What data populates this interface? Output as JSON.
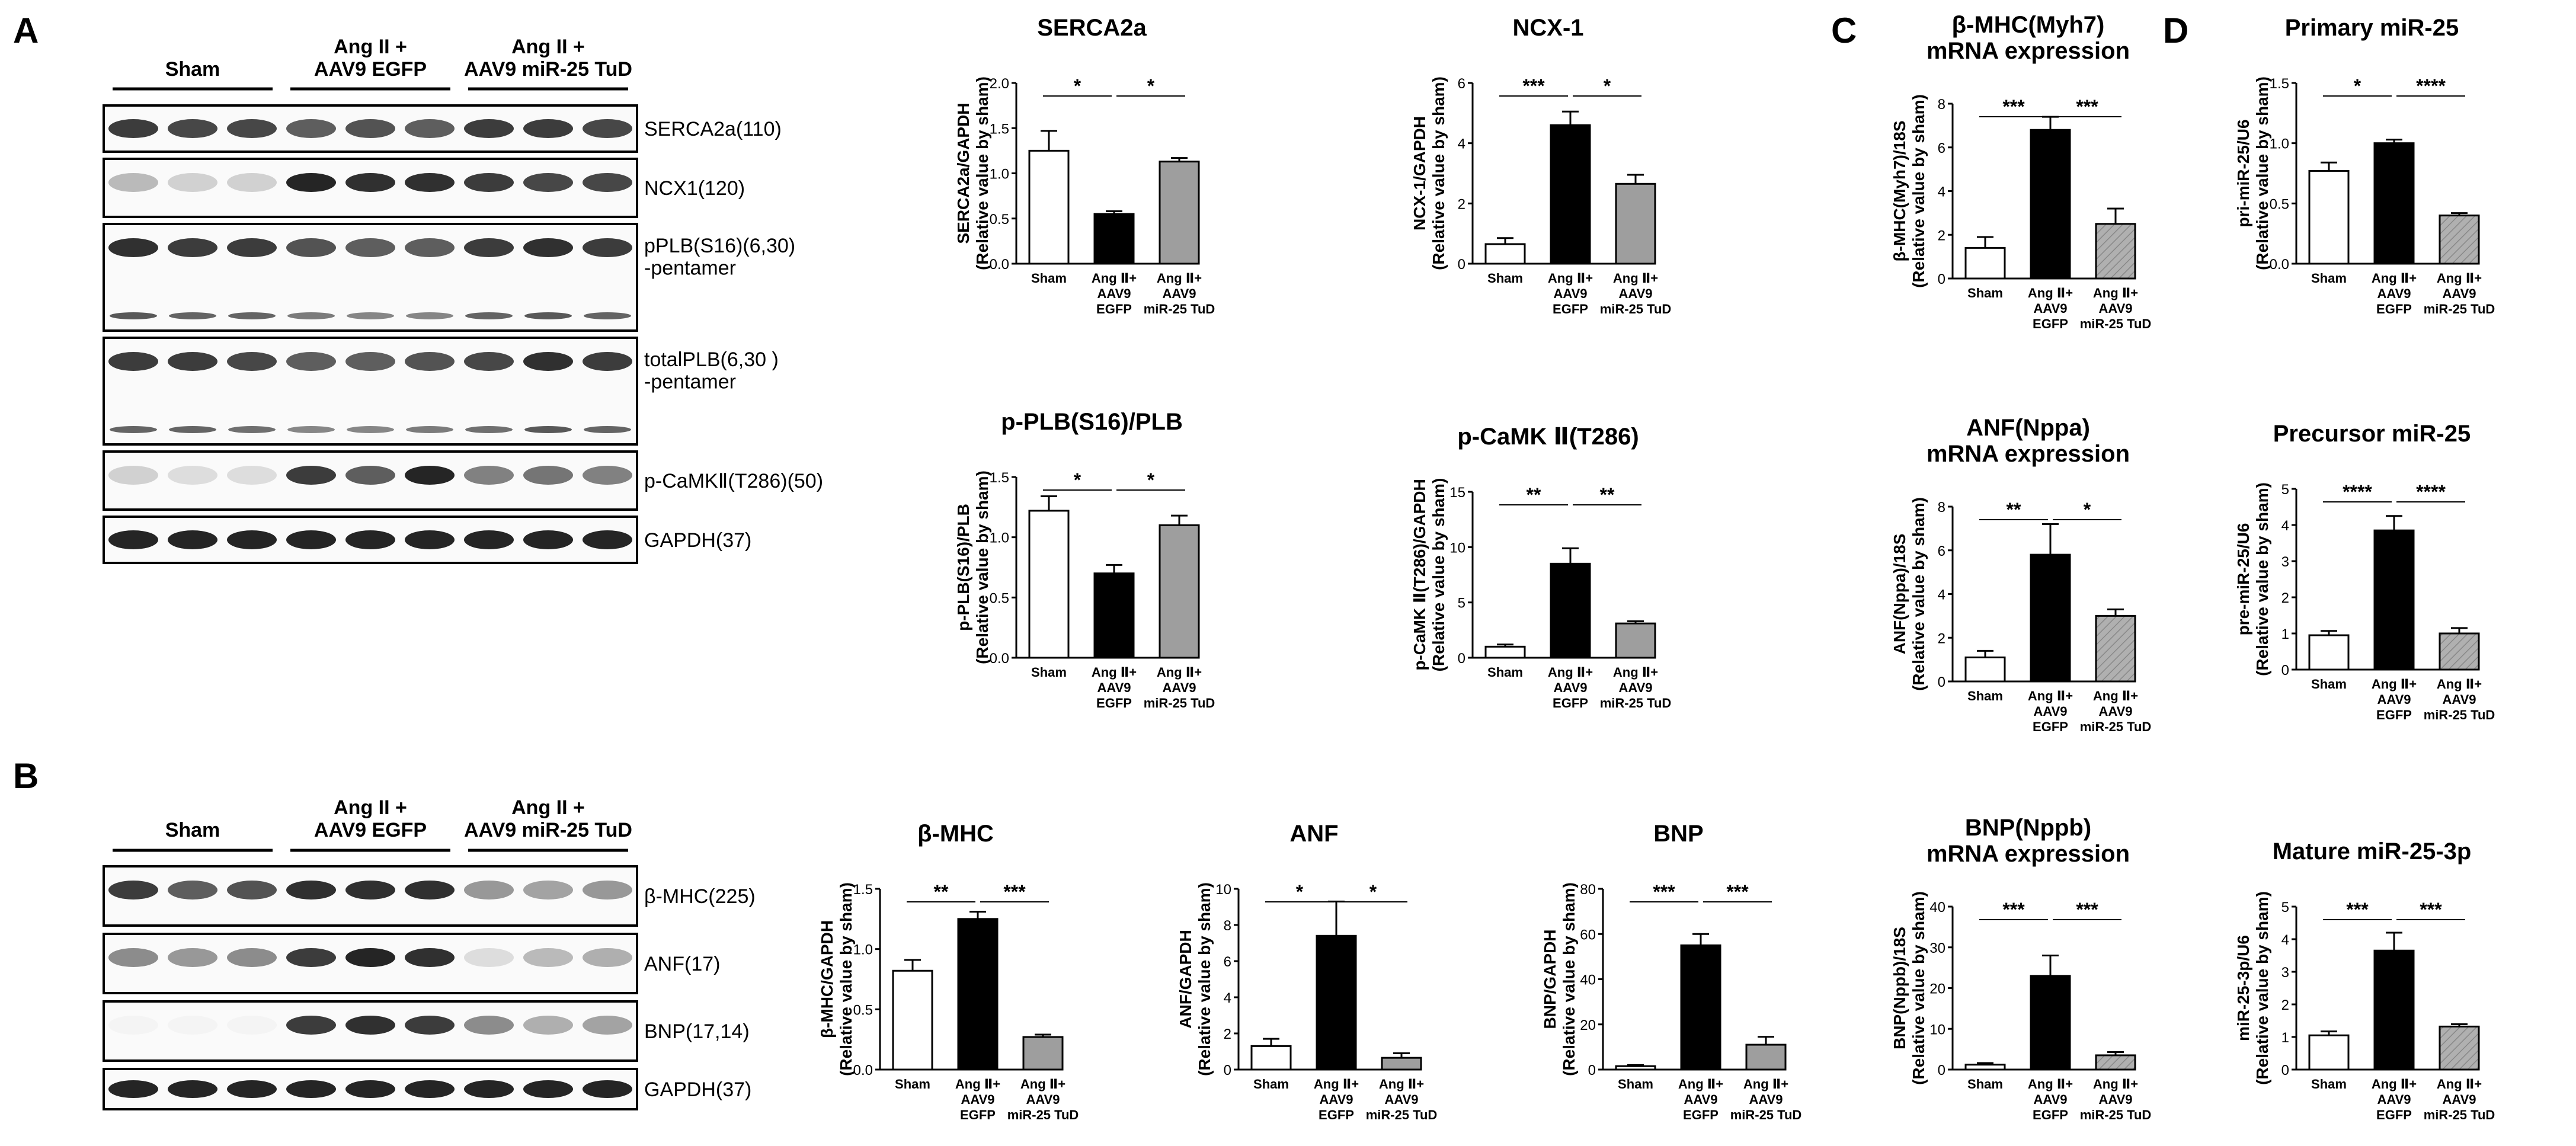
{
  "panels": {
    "A": "A",
    "B": "B",
    "C": "C",
    "D": "D"
  },
  "colors": {
    "sham": "#ffffff",
    "egfp": "#000000",
    "tud": "#9e9e9e",
    "tud_hatched": "#b0b0b0",
    "axis": "#000000"
  },
  "blot_A": {
    "group_labels": [
      "Sham",
      "Ang II +\nAAV9 EGFP",
      "Ang II +\nAAV9 miR-25 TuD"
    ],
    "bands": [
      {
        "label": "SERCA2a(110)",
        "intensity": [
          0.85,
          0.8,
          0.8,
          0.7,
          0.75,
          0.7,
          0.85,
          0.85,
          0.8
        ]
      },
      {
        "label": "NCX1(120)",
        "intensity": [
          0.3,
          0.2,
          0.2,
          0.95,
          0.9,
          0.9,
          0.85,
          0.8,
          0.8
        ]
      },
      {
        "label": "pPLB(S16)(6,30)\n-pentamer",
        "intensity": [
          0.9,
          0.85,
          0.85,
          0.75,
          0.7,
          0.7,
          0.85,
          0.9,
          0.85
        ]
      },
      {
        "label": "totalPLB(6,30 )\n-pentamer",
        "intensity": [
          0.85,
          0.85,
          0.8,
          0.7,
          0.7,
          0.75,
          0.8,
          0.9,
          0.85
        ]
      },
      {
        "label": "p-CaMKⅡ(T286)(50)",
        "intensity": [
          0.2,
          0.15,
          0.15,
          0.85,
          0.7,
          0.95,
          0.55,
          0.6,
          0.55
        ]
      },
      {
        "label": "GAPDH(37)",
        "intensity": [
          0.95,
          0.95,
          0.95,
          0.95,
          0.95,
          0.95,
          0.95,
          0.95,
          0.95
        ]
      }
    ]
  },
  "blot_B": {
    "group_labels": [
      "Sham",
      "Ang II +\nAAV9 EGFP",
      "Ang II +\nAAV9 miR-25 TuD"
    ],
    "bands": [
      {
        "label": "β-MHC(225)",
        "intensity": [
          0.85,
          0.7,
          0.75,
          0.9,
          0.9,
          0.9,
          0.45,
          0.4,
          0.45
        ]
      },
      {
        "label": "ANF(17)",
        "intensity": [
          0.5,
          0.45,
          0.5,
          0.85,
          0.95,
          0.9,
          0.15,
          0.3,
          0.35
        ]
      },
      {
        "label": "BNP(17,14)",
        "intensity": [
          0.05,
          0.05,
          0.05,
          0.85,
          0.9,
          0.85,
          0.5,
          0.35,
          0.4
        ]
      },
      {
        "label": "GAPDH(37)",
        "intensity": [
          0.95,
          0.95,
          0.95,
          0.95,
          0.95,
          0.95,
          0.95,
          0.95,
          0.95
        ]
      }
    ]
  },
  "chart_data": [
    {
      "type": "bar",
      "title": "SERCA2a",
      "ylabel": "SERCA2a/GAPDH\n(Relative value by sham)",
      "categories": [
        "Sham",
        "Ang Ⅱ+\nAAV9\nEGFP",
        "Ang Ⅱ+\nAAV9\nmiR-25 TuD"
      ],
      "values": [
        1.25,
        0.55,
        1.13
      ],
      "errors": [
        0.22,
        0.03,
        0.04
      ],
      "ylim": [
        0,
        2.0
      ],
      "ticks": [
        "0.0",
        "0.5",
        "1.0",
        "1.5",
        "2.0"
      ],
      "significance": [
        {
          "from": 0,
          "to": 1,
          "label": "*"
        },
        {
          "from": 1,
          "to": 2,
          "label": "*"
        }
      ],
      "hatched": false
    },
    {
      "type": "bar",
      "title": "NCX-1",
      "ylabel": "NCX-1/GAPDH\n(Relative value by sham)",
      "categories": [
        "Sham",
        "Ang Ⅱ+\nAAV9\nEGFP",
        "Ang Ⅱ+\nAAV9\nmiR-25 TuD"
      ],
      "values": [
        0.65,
        4.6,
        2.65
      ],
      "errors": [
        0.2,
        0.45,
        0.3
      ],
      "ylim": [
        0,
        6
      ],
      "ticks": [
        "0",
        "2",
        "4",
        "6"
      ],
      "significance": [
        {
          "from": 0,
          "to": 1,
          "label": "***"
        },
        {
          "from": 1,
          "to": 2,
          "label": "*"
        }
      ],
      "hatched": false
    },
    {
      "type": "bar",
      "title": "p-PLB(S16)/PLB",
      "ylabel": "p-PLB(S16)/PLB\n(Relative value by sham)",
      "categories": [
        "Sham",
        "Ang Ⅱ+\nAAV9\nEGFP",
        "Ang Ⅱ+\nAAV9\nmiR-25 TuD"
      ],
      "values": [
        1.22,
        0.7,
        1.1
      ],
      "errors": [
        0.12,
        0.07,
        0.08
      ],
      "ylim": [
        0,
        1.5
      ],
      "ticks": [
        "0.0",
        "0.5",
        "1.0",
        "1.5"
      ],
      "significance": [
        {
          "from": 0,
          "to": 1,
          "label": "*"
        },
        {
          "from": 1,
          "to": 2,
          "label": "*"
        }
      ],
      "hatched": false
    },
    {
      "type": "bar",
      "title": "p-CaMK Ⅱ(T286)",
      "ylabel": "p-CaMK Ⅱ(T286)/GAPDH\n(Relative value by sham)",
      "categories": [
        "Sham",
        "Ang Ⅱ+\nAAV9\nEGFP",
        "Ang Ⅱ+\nAAV9\nmiR-25 TuD"
      ],
      "values": [
        1.0,
        8.5,
        3.1
      ],
      "errors": [
        0.2,
        1.4,
        0.2
      ],
      "ylim": [
        0,
        15
      ],
      "ticks": [
        "0",
        "5",
        "10",
        "15"
      ],
      "significance": [
        {
          "from": 0,
          "to": 1,
          "label": "**"
        },
        {
          "from": 1,
          "to": 2,
          "label": "**"
        }
      ],
      "hatched": false
    },
    {
      "type": "bar",
      "title": "β-MHC",
      "ylabel": "β-MHC/GAPDH\n(Relative value by sham)",
      "categories": [
        "Sham",
        "Ang Ⅱ+\nAAV9\nEGFP",
        "Ang Ⅱ+\nAAV9\nmiR-25 TuD"
      ],
      "values": [
        0.82,
        1.25,
        0.27
      ],
      "errors": [
        0.09,
        0.06,
        0.02
      ],
      "ylim": [
        0,
        1.5
      ],
      "ticks": [
        "0.0",
        "0.5",
        "1.0",
        "1.5"
      ],
      "significance": [
        {
          "from": 0,
          "to": 1,
          "label": "**"
        },
        {
          "from": 1,
          "to": 2,
          "label": "***"
        }
      ],
      "hatched": false
    },
    {
      "type": "bar",
      "title": "ANF",
      "ylabel": "ANF/GAPDH\n(Relative value by sham)",
      "categories": [
        "Sham",
        "Ang Ⅱ+\nAAV9\nEGFP",
        "Ang Ⅱ+\nAAV9\nmiR-25 TuD"
      ],
      "values": [
        1.3,
        7.4,
        0.65
      ],
      "errors": [
        0.4,
        1.9,
        0.25
      ],
      "ylim": [
        0,
        10
      ],
      "ticks": [
        "0",
        "2",
        "4",
        "6",
        "8",
        "10"
      ],
      "significance": [
        {
          "from": 0,
          "to": 1,
          "label": "*"
        },
        {
          "from": 1,
          "to": 2,
          "label": "*"
        }
      ],
      "hatched": false
    },
    {
      "type": "bar",
      "title": "BNP",
      "ylabel": "BNP/GAPDH\n(Relative value by sham)",
      "categories": [
        "Sham",
        "Ang Ⅱ+\nAAV9\nEGFP",
        "Ang Ⅱ+\nAAV9\nmiR-25 TuD"
      ],
      "values": [
        1.5,
        55,
        11
      ],
      "errors": [
        0.5,
        5,
        3.5
      ],
      "ylim": [
        0,
        80
      ],
      "ticks": [
        "0",
        "20",
        "40",
        "60",
        "80"
      ],
      "significance": [
        {
          "from": 0,
          "to": 1,
          "label": "***"
        },
        {
          "from": 1,
          "to": 2,
          "label": "***"
        }
      ],
      "hatched": false
    },
    {
      "type": "bar",
      "title": "β-MHC(Myh7)\nmRNA expression",
      "ylabel": "β-MHC(Myh7)/18S\n(Relative value by sham)",
      "categories": [
        "Sham",
        "Ang Ⅱ+\nAAV9\nEGFP",
        "Ang Ⅱ+\nAAV9\nmiR-25 TuD"
      ],
      "values": [
        1.4,
        6.8,
        2.5
      ],
      "errors": [
        0.5,
        0.6,
        0.7
      ],
      "ylim": [
        0,
        8
      ],
      "ticks": [
        "0",
        "2",
        "4",
        "6",
        "8"
      ],
      "significance": [
        {
          "from": 0,
          "to": 1,
          "label": "***"
        },
        {
          "from": 1,
          "to": 2,
          "label": "***"
        }
      ],
      "hatched": true
    },
    {
      "type": "bar",
      "title": "ANF(Nppa)\nmRNA expression",
      "ylabel": "ANF(Nppa)/18S\n(Relative value by sham)",
      "categories": [
        "Sham",
        "Ang Ⅱ+\nAAV9\nEGFP",
        "Ang Ⅱ+\nAAV9\nmiR-25 TuD"
      ],
      "values": [
        1.1,
        5.8,
        3.0
      ],
      "errors": [
        0.3,
        1.4,
        0.3
      ],
      "ylim": [
        0,
        8
      ],
      "ticks": [
        "0",
        "2",
        "4",
        "6",
        "8"
      ],
      "significance": [
        {
          "from": 0,
          "to": 1,
          "label": "**"
        },
        {
          "from": 1,
          "to": 2,
          "label": "*"
        }
      ],
      "hatched": true
    },
    {
      "type": "bar",
      "title": "BNP(Nppb)\nmRNA expression",
      "ylabel": "BNP(Nppb)/18S\n(Relative value by sham)",
      "categories": [
        "Sham",
        "Ang Ⅱ+\nAAV9\nEGFP",
        "Ang Ⅱ+\nAAV9\nmiR-25 TuD"
      ],
      "values": [
        1.2,
        23,
        3.5
      ],
      "errors": [
        0.4,
        5,
        0.8
      ],
      "ylim": [
        0,
        40
      ],
      "ticks": [
        "0",
        "10",
        "20",
        "30",
        "40"
      ],
      "significance": [
        {
          "from": 0,
          "to": 1,
          "label": "***"
        },
        {
          "from": 1,
          "to": 2,
          "label": "***"
        }
      ],
      "hatched": true
    },
    {
      "type": "bar",
      "title": "Primary miR-25",
      "ylabel": "pri-miR-25/U6\n(Relative value by sham)",
      "categories": [
        "Sham",
        "Ang Ⅱ+\nAAV9\nEGFP",
        "Ang Ⅱ+\nAAV9\nmiR-25 TuD"
      ],
      "values": [
        0.77,
        1.0,
        0.4
      ],
      "errors": [
        0.07,
        0.03,
        0.02
      ],
      "ylim": [
        0,
        1.5
      ],
      "ticks": [
        "0.0",
        "0.5",
        "1.0",
        "1.5"
      ],
      "significance": [
        {
          "from": 0,
          "to": 1,
          "label": "*"
        },
        {
          "from": 1,
          "to": 2,
          "label": "****"
        }
      ],
      "hatched": true
    },
    {
      "type": "bar",
      "title": "Precursor miR-25",
      "ylabel": "pre-miR-25/U6\n(Relative value by sham)",
      "categories": [
        "Sham",
        "Ang Ⅱ+\nAAV9\nEGFP",
        "Ang Ⅱ+\nAAV9\nmiR-25 TuD"
      ],
      "values": [
        0.95,
        3.85,
        1.0
      ],
      "errors": [
        0.12,
        0.4,
        0.15
      ],
      "ylim": [
        0,
        5
      ],
      "ticks": [
        "0",
        "1",
        "2",
        "3",
        "4",
        "5"
      ],
      "significance": [
        {
          "from": 0,
          "to": 1,
          "label": "****"
        },
        {
          "from": 1,
          "to": 2,
          "label": "****"
        }
      ],
      "hatched": true
    },
    {
      "type": "bar",
      "title": "Mature miR-25-3p",
      "ylabel": "miR-25-3p/U6\n(Relative value by sham)",
      "categories": [
        "Sham",
        "Ang Ⅱ+\nAAV9\nEGFP",
        "Ang Ⅱ+\nAAV9\nmiR-25 TuD"
      ],
      "values": [
        1.05,
        3.65,
        1.32
      ],
      "errors": [
        0.12,
        0.55,
        0.07
      ],
      "ylim": [
        0,
        5
      ],
      "ticks": [
        "0",
        "1",
        "2",
        "3",
        "4",
        "5"
      ],
      "significance": [
        {
          "from": 0,
          "to": 1,
          "label": "***"
        },
        {
          "from": 1,
          "to": 2,
          "label": "***"
        }
      ],
      "hatched": true
    }
  ]
}
